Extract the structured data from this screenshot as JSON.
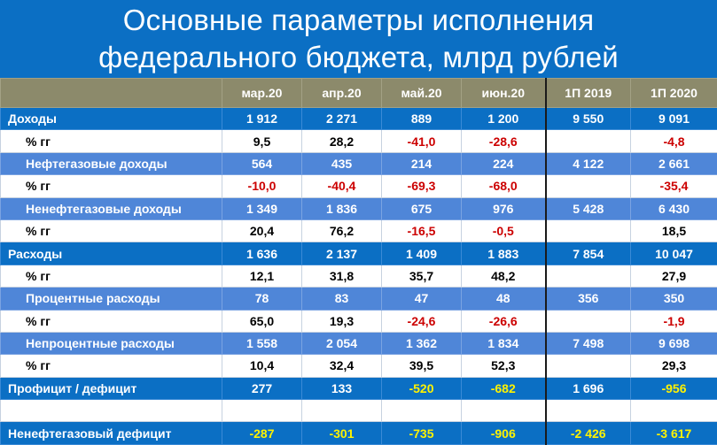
{
  "title": {
    "line1": "Основные параметры исполнения",
    "line2": "федерального бюджета, млрд рублей"
  },
  "columns": [
    "мар.20",
    "апр.20",
    "май.20",
    "июн.20",
    "1П 2019",
    "1П 2020"
  ],
  "rows": [
    {
      "label": "Доходы",
      "type": "main",
      "values": [
        "1 912",
        "2 271",
        "889",
        "1 200",
        "9 550",
        "9 091"
      ]
    },
    {
      "label": "% гг",
      "type": "pct",
      "values": [
        "9,5",
        "28,2",
        "-41,0",
        "-28,6",
        "",
        "-4,8"
      ]
    },
    {
      "label": "Нефтегазовые доходы",
      "type": "sub",
      "values": [
        "564",
        "435",
        "214",
        "224",
        "4 122",
        "2 661"
      ]
    },
    {
      "label": "% гг",
      "type": "pct",
      "values": [
        "-10,0",
        "-40,4",
        "-69,3",
        "-68,0",
        "",
        "-35,4"
      ]
    },
    {
      "label": "Ненефтегазовые доходы",
      "type": "sub",
      "values": [
        "1 349",
        "1 836",
        "675",
        "976",
        "5 428",
        "6 430"
      ]
    },
    {
      "label": "% гг",
      "type": "pct",
      "values": [
        "20,4",
        "76,2",
        "-16,5",
        "-0,5",
        "",
        "18,5"
      ]
    },
    {
      "label": "Расходы",
      "type": "main",
      "values": [
        "1 636",
        "2 137",
        "1 409",
        "1 883",
        "7 854",
        "10 047"
      ]
    },
    {
      "label": "% гг",
      "type": "pct",
      "values": [
        "12,1",
        "31,8",
        "35,7",
        "48,2",
        "",
        "27,9"
      ]
    },
    {
      "label": "Процентные расходы",
      "type": "sub",
      "values": [
        "78",
        "83",
        "47",
        "48",
        "356",
        "350"
      ]
    },
    {
      "label": "% гг",
      "type": "pct",
      "values": [
        "65,0",
        "19,3",
        "-24,6",
        "-26,6",
        "",
        "-1,9"
      ]
    },
    {
      "label": "Непроцентные расходы",
      "type": "sub",
      "values": [
        "1 558",
        "2 054",
        "1 362",
        "1 834",
        "7 498",
        "9 698"
      ]
    },
    {
      "label": "% гг",
      "type": "pct",
      "values": [
        "10,4",
        "32,4",
        "39,5",
        "52,3",
        "",
        "29,3"
      ]
    },
    {
      "label": "Профицит / дефицит",
      "type": "main",
      "values": [
        "277",
        "133",
        "-520",
        "-682",
        "1 696",
        "-956"
      ]
    },
    {
      "label": "",
      "type": "blank",
      "values": [
        "",
        "",
        "",
        "",
        "",
        ""
      ]
    },
    {
      "label": "Ненефтегазовый дефицит",
      "type": "main",
      "values": [
        "-287",
        "-301",
        "-735",
        "-906",
        "-2 426",
        "-3 617"
      ]
    }
  ],
  "colors": {
    "background": "#0b6fc4",
    "header": "#8c8a6b",
    "sub_row": "#4f86d8",
    "negative_on_white": "#cc0000",
    "negative_on_blue": "#fff200"
  }
}
